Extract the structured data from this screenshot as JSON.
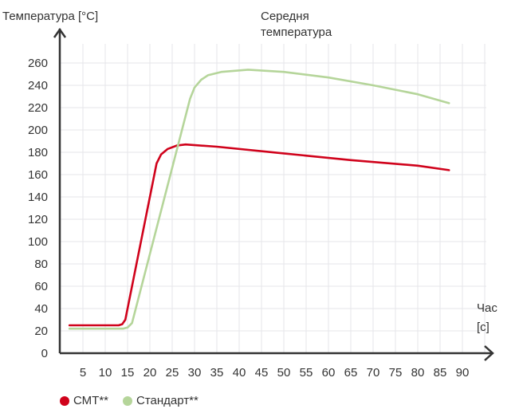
{
  "chart_data": {
    "type": "line",
    "title": "Середня температура",
    "ylabel": "Температура [°C]",
    "xlabel": "Час [с]",
    "xlabel_line1": "Час",
    "xlabel_line2": "[с]",
    "title_line1": "Середня",
    "title_line2": "температура",
    "ylim": [
      0,
      270
    ],
    "xlim": [
      0,
      95
    ],
    "yticks": [
      0,
      20,
      40,
      60,
      80,
      100,
      120,
      140,
      160,
      180,
      200,
      220,
      240,
      260
    ],
    "xticks": [
      5,
      10,
      15,
      20,
      25,
      30,
      35,
      40,
      45,
      50,
      55,
      60,
      65,
      70,
      75,
      80,
      85,
      90
    ],
    "grid": true,
    "legend_position": "bottom-left",
    "series": [
      {
        "name": "СМТ**",
        "color": "#d0021b",
        "x": [
          2,
          13,
          13.8,
          14.5,
          21.5,
          22.5,
          24,
          26,
          28,
          35,
          50,
          65,
          80,
          87
        ],
        "y": [
          25,
          25,
          26,
          30,
          170,
          178,
          183,
          186,
          187,
          185,
          179,
          173,
          168,
          164
        ]
      },
      {
        "name": "Стандарт**",
        "color": "#b5d59a",
        "x": [
          2,
          14,
          15,
          16,
          29,
          30,
          31.5,
          33,
          36,
          42,
          50,
          60,
          70,
          80,
          87
        ],
        "y": [
          22,
          22,
          23,
          27,
          228,
          238,
          245,
          249,
          252,
          254,
          252,
          247,
          240,
          232,
          224
        ]
      }
    ]
  }
}
